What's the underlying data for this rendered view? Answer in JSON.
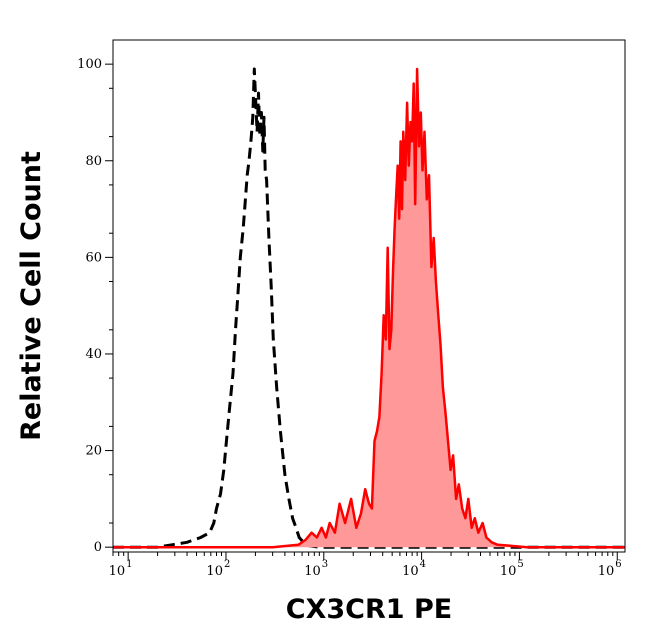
{
  "chart_data": {
    "type": "area",
    "xlabel": "CX3CR1 PE",
    "ylabel": "Relative Cell Count",
    "x_scale": "log",
    "xlim": [
      7,
      1200000
    ],
    "ylim": [
      -1,
      105
    ],
    "x_ticks": [
      {
        "value": 10,
        "base": "10",
        "exp": "1"
      },
      {
        "value": 100,
        "base": "10",
        "exp": "2"
      },
      {
        "value": 1000,
        "base": "10",
        "exp": "3"
      },
      {
        "value": 10000,
        "base": "10",
        "exp": "4"
      },
      {
        "value": 100000,
        "base": "10",
        "exp": "5"
      },
      {
        "value": 1000000,
        "base": "10",
        "exp": "6"
      }
    ],
    "y_ticks": [
      0,
      20,
      40,
      60,
      80,
      100
    ],
    "grid": false,
    "legend": "none",
    "series": [
      {
        "style": "dashed",
        "color": "#000000",
        "fill": "none",
        "x": [
          7,
          20,
          28,
          40,
          55,
          68,
          75,
          80,
          88,
          95,
          100,
          108,
          118,
          125,
          132,
          140,
          150,
          158,
          165,
          172,
          180,
          188,
          195,
          202,
          208,
          215,
          222,
          230,
          238,
          245,
          252,
          260,
          275,
          290,
          305,
          330,
          360,
          400,
          440,
          480,
          520,
          560,
          620,
          700,
          900,
          1500,
          3000,
          10000,
          100000,
          1200000
        ],
        "y": [
          0,
          0,
          0.5,
          1,
          2,
          3,
          5,
          8,
          11,
          16,
          21,
          28,
          36,
          45,
          52,
          60,
          66,
          72,
          77,
          80,
          84,
          89,
          99,
          92,
          86,
          94,
          85,
          90,
          82,
          89,
          78,
          76,
          64,
          54,
          43,
          33,
          24,
          15,
          10,
          6,
          4,
          2,
          1,
          0.3,
          0,
          0,
          0,
          0,
          0,
          0
        ]
      },
      {
        "style": "solid",
        "color": "#ff0000",
        "fill": "#ff9999",
        "x": [
          7,
          100,
          300,
          550,
          650,
          750,
          850,
          950,
          1050,
          1150,
          1300,
          1450,
          1650,
          1900,
          2150,
          2400,
          2650,
          2900,
          3100,
          3300,
          3500,
          3700,
          3900,
          4100,
          4300,
          4500,
          4700,
          4900,
          5100,
          5300,
          5500,
          5700,
          5900,
          6100,
          6300,
          6500,
          6800,
          7100,
          7400,
          7700,
          8000,
          8300,
          8600,
          9000,
          9400,
          9800,
          10200,
          10700,
          11300,
          11900,
          12600,
          13300,
          14000,
          14800,
          15600,
          16500,
          17500,
          18600,
          19800,
          21000,
          22500,
          24000,
          26000,
          28000,
          30000,
          32500,
          35000,
          38000,
          42000,
          46000,
          52000,
          60000,
          80000,
          120000,
          300000,
          1200000
        ],
        "y": [
          0,
          0,
          0,
          0.5,
          1.5,
          3,
          2,
          4,
          2,
          5,
          3,
          9,
          5,
          10,
          4,
          7,
          12,
          9,
          8,
          22,
          24,
          27,
          36,
          48,
          43,
          62,
          41,
          45,
          57,
          66,
          73,
          79,
          68,
          84,
          70,
          86,
          76,
          92,
          79,
          88,
          84,
          96,
          71,
          99,
          83,
          90,
          78,
          86,
          72,
          77,
          58,
          64,
          55,
          48,
          42,
          33,
          28,
          22,
          16,
          19,
          10,
          13,
          8,
          6,
          10,
          4,
          6,
          3,
          5,
          2,
          1,
          0.5,
          0.3,
          0,
          0,
          0
        ]
      }
    ]
  }
}
